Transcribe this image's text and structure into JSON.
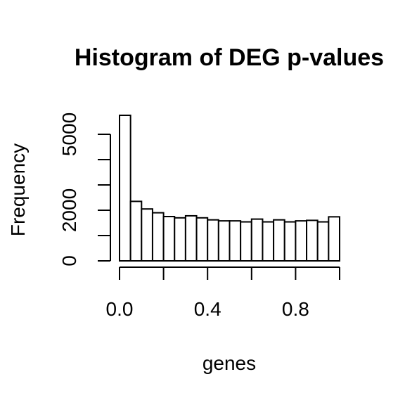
{
  "chart_data": {
    "type": "bar",
    "title": "Histogram of DEG p-values",
    "xlabel": "genes",
    "ylabel": "Frequency",
    "bin_edges": [
      0.0,
      0.05,
      0.1,
      0.15,
      0.2,
      0.25,
      0.3,
      0.35,
      0.4,
      0.45,
      0.5,
      0.55,
      0.6,
      0.65,
      0.7,
      0.75,
      0.8,
      0.85,
      0.9,
      0.95,
      1.0
    ],
    "values": [
      5750,
      2350,
      2050,
      1900,
      1750,
      1700,
      1780,
      1700,
      1620,
      1580,
      1580,
      1540,
      1650,
      1540,
      1620,
      1540,
      1580,
      1600,
      1540,
      1740
    ],
    "xlim": [
      0,
      1
    ],
    "ylim": [
      0,
      6000
    ],
    "x_ticks": [
      0.0,
      0.2,
      0.4,
      0.6,
      0.8,
      1.0
    ],
    "x_tick_labels": [
      "0.0",
      "",
      "0.4",
      "",
      "0.8",
      ""
    ],
    "y_ticks": [
      0,
      1000,
      2000,
      3000,
      4000,
      5000
    ],
    "y_tick_labels": [
      "0",
      "",
      "2000",
      "",
      "",
      "5000"
    ],
    "grid": false,
    "legend": "none"
  }
}
